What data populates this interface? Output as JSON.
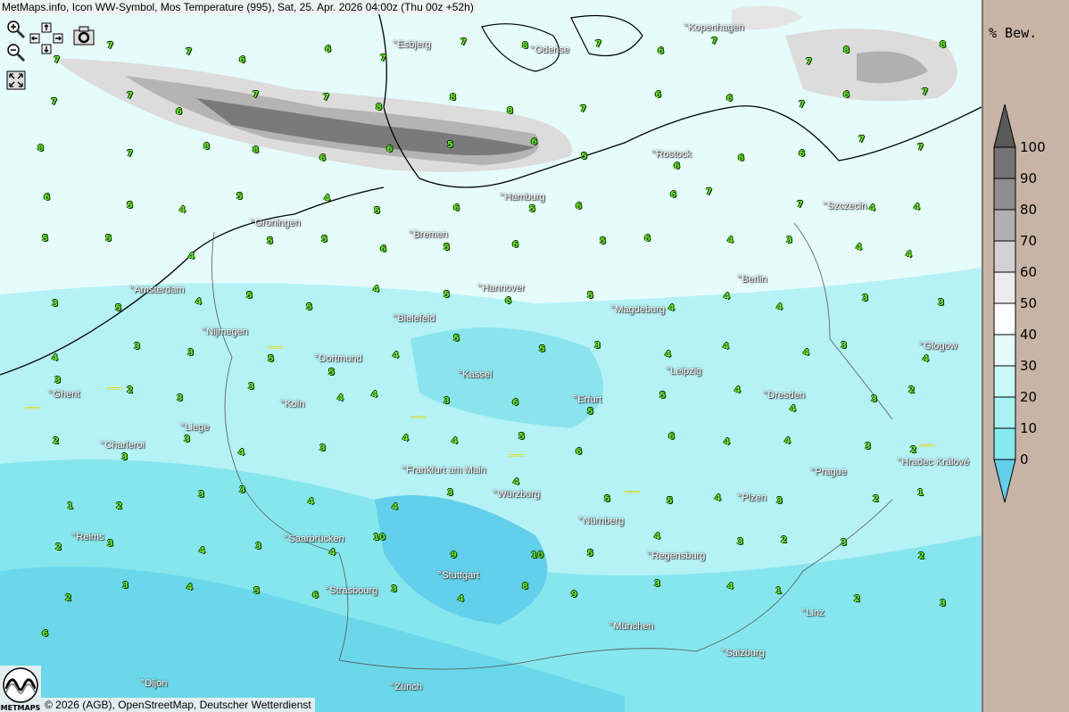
{
  "title": "MetMaps.info, Icon WW-Symbol, Mos Temperature (995), Sat, 25. Apr. 2026 04:00z (Thu 00z +52h)",
  "controls": {
    "zoom_in": "zoom-in-icon",
    "zoom_out": "zoom-out-icon",
    "pan": "pan-arrows-icon",
    "snapshot": "camera-icon",
    "fullscreen": "fullscreen-icon"
  },
  "copyright": "© 2026 (AGB), OpenStreetMap, Deutscher Wetterdienst",
  "logo": "METMAPS",
  "legend": {
    "title": "% Bew.",
    "levels": [
      "100",
      "90",
      "80",
      "70",
      "60",
      "50",
      "40",
      "30",
      "20",
      "10",
      "0"
    ],
    "colors": [
      "#5a5a5a",
      "#747474",
      "#8e8e8e",
      "#b0b0b0",
      "#d2d2d2",
      "#ececec",
      "#ffffff",
      "#e4fcfc",
      "#c8f8f8",
      "#a8f2f4",
      "#86eaf0",
      "#62d0ea"
    ]
  },
  "cities": [
    "Esbjerg",
    "Odense",
    "Kopenhagen",
    "Rostock",
    "Hamburg",
    "Szczecin",
    "Groningen",
    "Bremen",
    "Amsterdam",
    "Hannover",
    "Berlin",
    "Bielefeld",
    "Magdeburg",
    "Nijmegen",
    "Glogow",
    "Dortmund",
    "Kassel",
    "Leipzig",
    "Ghent",
    "Dresden",
    "Erfurt",
    "Koln",
    "Liege",
    "Charleroi",
    "Frankfurt am Main",
    "Prague",
    "Hradec Králové",
    "Würzburg",
    "Plzen",
    "Nürnberg",
    "Reims",
    "Saarbrücken",
    "Regensburg",
    "Stuttgart",
    "Strasbourg",
    "Linz",
    "München",
    "Salzburg",
    "Zürich",
    "Dijon"
  ],
  "symbols": [
    "7",
    "7",
    "7",
    "6",
    "6",
    "7",
    "7",
    "8",
    "7",
    "6",
    "7",
    "7",
    "8",
    "8",
    "7",
    "7",
    "6",
    "7",
    "7",
    "8",
    "8",
    "8",
    "7",
    "6",
    "6",
    "7",
    "6",
    "7",
    "8",
    "7",
    "8",
    "8",
    "6",
    "6",
    "5",
    "6",
    "5",
    "6",
    "6",
    "6",
    "7",
    "7",
    "6",
    "5",
    "4",
    "5",
    "4",
    "5",
    "6",
    "5",
    "6",
    "6",
    "7",
    "7",
    "4",
    "4",
    "5",
    "5",
    "4",
    "5",
    "5",
    "6",
    "5",
    "6",
    "5",
    "6",
    "4",
    "3",
    "4",
    "4",
    "3",
    "5",
    "4",
    "5",
    "5",
    "4",
    "5",
    "6",
    "5",
    "4",
    "4",
    "4",
    "3",
    "3",
    "4",
    "3",
    "3",
    "5",
    "5",
    "4",
    "5",
    "5",
    "3",
    "4",
    "4",
    "4",
    "3",
    "4",
    "3",
    "2",
    "3",
    "3",
    "4",
    "4",
    "3",
    "6",
    "5",
    "5",
    "4",
    "4",
    "3",
    "2",
    "2",
    "3",
    "3",
    "4",
    "3",
    "4",
    "4",
    "5",
    "6",
    "6",
    "4",
    "4",
    "3",
    "2",
    "1",
    "2",
    "3",
    "3",
    "4",
    "4",
    "3",
    "4",
    "5",
    "5",
    "4",
    "3",
    "2",
    "1",
    "2",
    "3",
    "4",
    "3",
    "4",
    "10",
    "9",
    "10",
    "5",
    "4",
    "3",
    "2",
    "3",
    "2",
    "2",
    "3",
    "4",
    "5",
    "6",
    "3",
    "4",
    "8",
    "9",
    "3",
    "4",
    "1",
    "2",
    "3",
    "6"
  ]
}
